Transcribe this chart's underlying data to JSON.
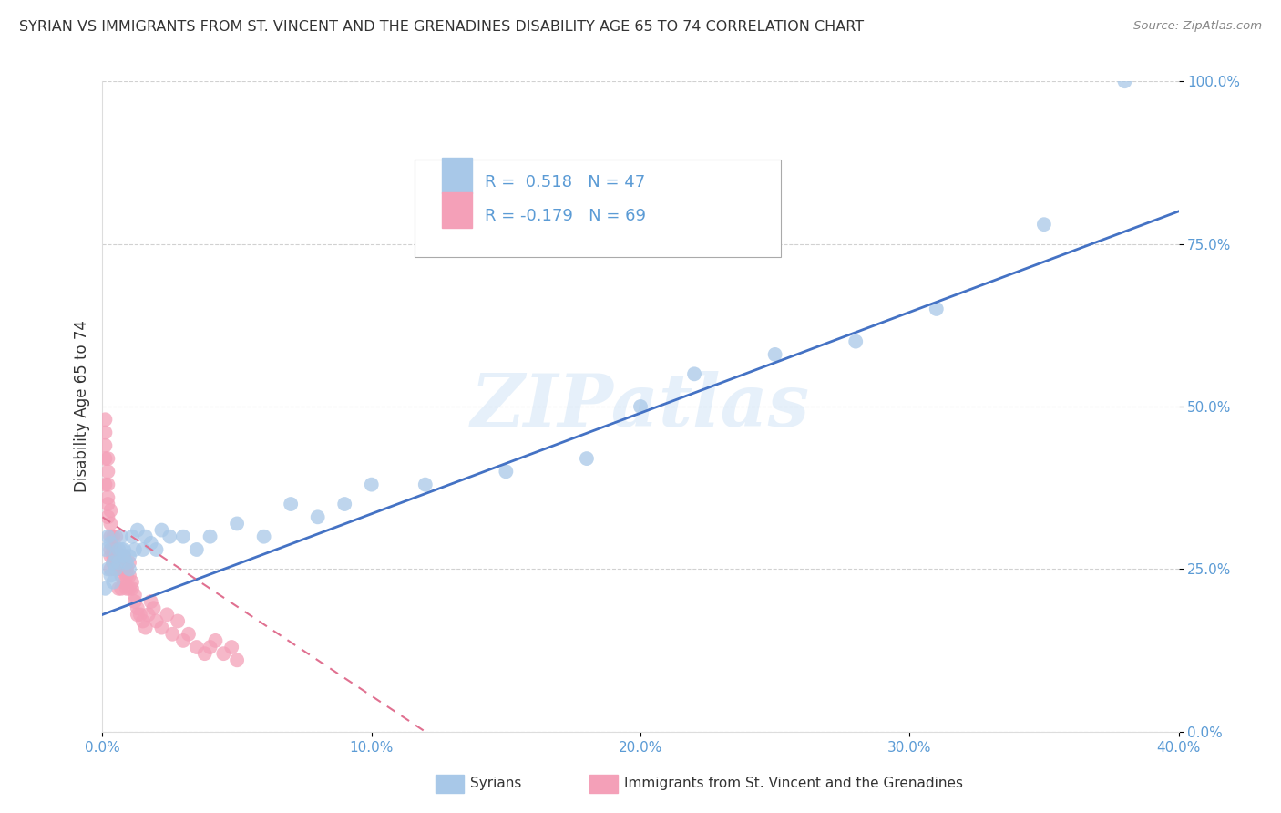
{
  "title": "SYRIAN VS IMMIGRANTS FROM ST. VINCENT AND THE GRENADINES DISABILITY AGE 65 TO 74 CORRELATION CHART",
  "source": "Source: ZipAtlas.com",
  "ylabel": "Disability Age 65 to 74",
  "xlim": [
    0.0,
    0.4
  ],
  "ylim": [
    0.0,
    1.0
  ],
  "xtick_vals": [
    0.0,
    0.1,
    0.2,
    0.3,
    0.4
  ],
  "xtick_labels": [
    "0.0%",
    "10.0%",
    "20.0%",
    "30.0%",
    "40.0%"
  ],
  "ytick_vals": [
    0.0,
    0.25,
    0.5,
    0.75,
    1.0
  ],
  "ytick_labels": [
    "0.0%",
    "25.0%",
    "50.0%",
    "75.0%",
    "100.0%"
  ],
  "legend1_label": "Syrians",
  "legend2_label": "Immigrants from St. Vincent and the Grenadines",
  "R_syrian": 0.518,
  "N_syrian": 47,
  "R_svg": -0.179,
  "N_svg": 69,
  "blue_color": "#a8c8e8",
  "pink_color": "#f4a0b8",
  "blue_line_color": "#4472c4",
  "pink_line_color": "#e07090",
  "tick_color": "#5b9bd5",
  "watermark": "ZIPatlas",
  "syrian_x": [
    0.001,
    0.001,
    0.002,
    0.002,
    0.003,
    0.003,
    0.004,
    0.004,
    0.005,
    0.005,
    0.006,
    0.006,
    0.007,
    0.007,
    0.008,
    0.008,
    0.009,
    0.01,
    0.01,
    0.011,
    0.012,
    0.013,
    0.015,
    0.016,
    0.018,
    0.02,
    0.022,
    0.025,
    0.03,
    0.035,
    0.04,
    0.05,
    0.06,
    0.07,
    0.08,
    0.09,
    0.1,
    0.12,
    0.15,
    0.18,
    0.2,
    0.22,
    0.25,
    0.28,
    0.31,
    0.35,
    0.38
  ],
  "syrian_y": [
    0.22,
    0.28,
    0.25,
    0.3,
    0.24,
    0.29,
    0.23,
    0.26,
    0.25,
    0.27,
    0.28,
    0.26,
    0.3,
    0.28,
    0.28,
    0.27,
    0.26,
    0.25,
    0.27,
    0.3,
    0.28,
    0.31,
    0.28,
    0.3,
    0.29,
    0.28,
    0.31,
    0.3,
    0.3,
    0.28,
    0.3,
    0.32,
    0.3,
    0.35,
    0.33,
    0.35,
    0.38,
    0.38,
    0.4,
    0.42,
    0.5,
    0.55,
    0.58,
    0.6,
    0.65,
    0.78,
    1.0
  ],
  "svg_x": [
    0.001,
    0.001,
    0.001,
    0.001,
    0.001,
    0.002,
    0.002,
    0.002,
    0.002,
    0.002,
    0.002,
    0.003,
    0.003,
    0.003,
    0.003,
    0.003,
    0.003,
    0.004,
    0.004,
    0.004,
    0.004,
    0.005,
    0.005,
    0.005,
    0.005,
    0.005,
    0.006,
    0.006,
    0.006,
    0.006,
    0.007,
    0.007,
    0.007,
    0.007,
    0.008,
    0.008,
    0.008,
    0.009,
    0.009,
    0.009,
    0.01,
    0.01,
    0.01,
    0.011,
    0.011,
    0.012,
    0.012,
    0.013,
    0.013,
    0.014,
    0.015,
    0.016,
    0.017,
    0.018,
    0.019,
    0.02,
    0.022,
    0.024,
    0.026,
    0.028,
    0.03,
    0.032,
    0.035,
    0.038,
    0.04,
    0.042,
    0.045,
    0.048,
    0.05
  ],
  "svg_y": [
    0.44,
    0.46,
    0.42,
    0.38,
    0.48,
    0.36,
    0.38,
    0.33,
    0.35,
    0.4,
    0.42,
    0.27,
    0.28,
    0.3,
    0.25,
    0.32,
    0.34,
    0.27,
    0.28,
    0.26,
    0.3,
    0.25,
    0.26,
    0.28,
    0.3,
    0.27,
    0.25,
    0.26,
    0.27,
    0.22,
    0.25,
    0.26,
    0.24,
    0.22,
    0.23,
    0.25,
    0.27,
    0.25,
    0.24,
    0.22,
    0.22,
    0.24,
    0.26,
    0.23,
    0.22,
    0.2,
    0.21,
    0.19,
    0.18,
    0.18,
    0.17,
    0.16,
    0.18,
    0.2,
    0.19,
    0.17,
    0.16,
    0.18,
    0.15,
    0.17,
    0.14,
    0.15,
    0.13,
    0.12,
    0.13,
    0.14,
    0.12,
    0.13,
    0.11
  ]
}
